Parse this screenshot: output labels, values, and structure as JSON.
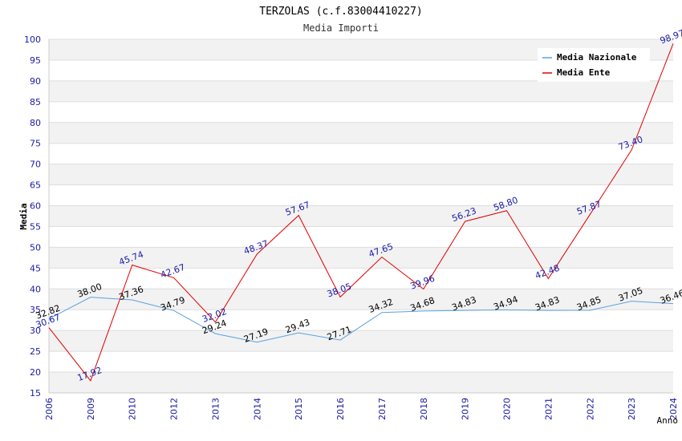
{
  "chart_data": {
    "type": "line",
    "title": "TERZOLAS (c.f.83004410227)",
    "subtitle": "Media Importi",
    "xlabel": "Anno",
    "ylabel": "Media",
    "ylim": [
      15,
      100
    ],
    "ytick_step": 5,
    "categories": [
      "2006",
      "2009",
      "2010",
      "2012",
      "2013",
      "2014",
      "2015",
      "2016",
      "2017",
      "2018",
      "2019",
      "2020",
      "2021",
      "2022",
      "2023",
      "2024"
    ],
    "series": [
      {
        "name": "Media Nazionale",
        "color": "#5aa0e0",
        "values": [
          32.82,
          38.0,
          37.36,
          34.79,
          29.24,
          27.19,
          29.43,
          27.71,
          34.32,
          34.68,
          34.83,
          34.94,
          34.83,
          34.85,
          37.05,
          36.46
        ],
        "labels": [
          "32.82",
          "38.00",
          "37.36",
          "34.79",
          "29.24",
          "27.19",
          "29.43",
          "27.71",
          "34.32",
          "34.68",
          "34.83",
          "34.94",
          "34.83",
          "34.85",
          "37.05",
          "36.46"
        ]
      },
      {
        "name": "Media Ente",
        "color": "#e00000",
        "values": [
          30.67,
          17.92,
          45.74,
          42.67,
          32.02,
          48.37,
          57.67,
          38.05,
          47.65,
          39.96,
          56.23,
          58.8,
          42.48,
          57.87,
          73.4,
          98.97
        ],
        "labels": [
          "30.67",
          "17.92",
          "45.74",
          "42.67",
          "32.02",
          "48.37",
          "57.67",
          "38.05",
          "47.65",
          "39.96",
          "56.23",
          "58.80",
          "42.48",
          "57.87",
          "73.40",
          "98.97"
        ]
      }
    ],
    "legend": "top-right",
    "grid": true
  }
}
